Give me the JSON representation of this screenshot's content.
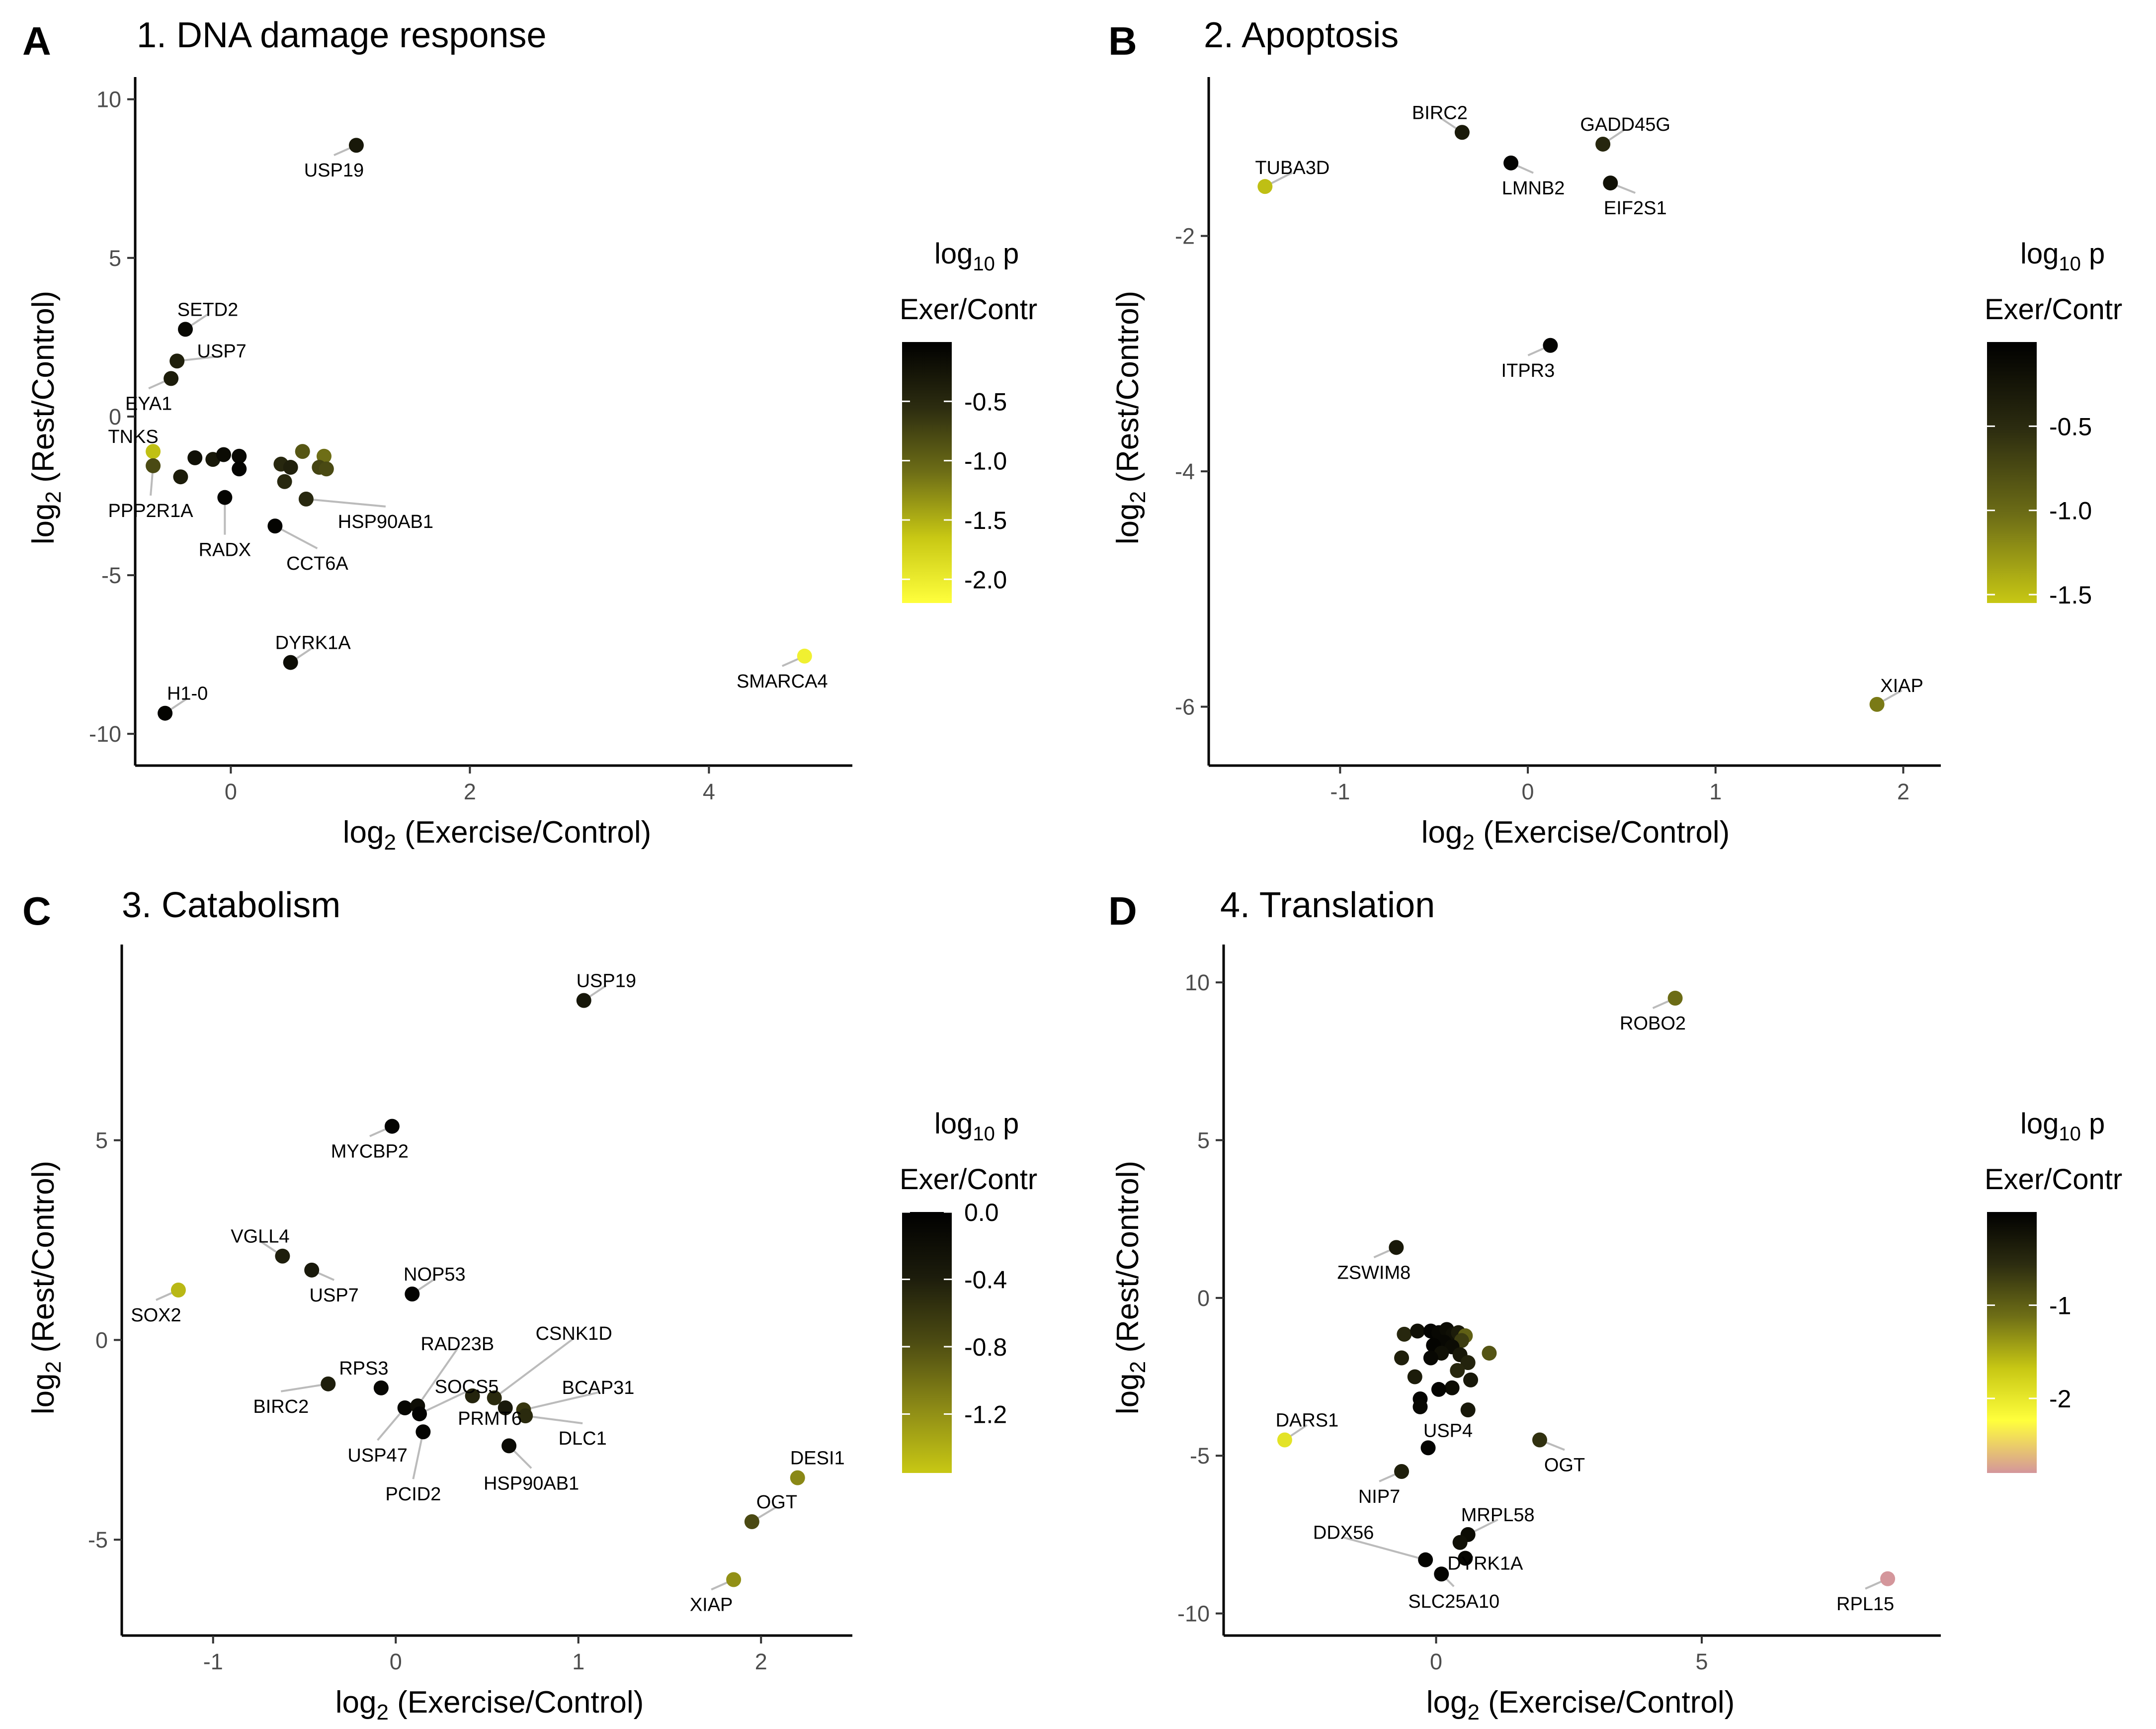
{
  "figure": {
    "panels": [
      {
        "letter": "A",
        "title": "1. DNA damage response",
        "legend": {
          "title_line1": "log10 p",
          "title_line2": "Exer/Contr"
        },
        "axis_titles": {
          "x": "log2 (Exercise/Control)",
          "y": "log2 (Rest/Control)"
        }
      },
      {
        "letter": "B",
        "title": "2. Apoptosis",
        "legend": {
          "title_line1": "log10 p",
          "title_line2": "Exer/Contr"
        },
        "axis_titles": {
          "x": "log2 (Exercise/Control)",
          "y": "log2 (Rest/Control)"
        }
      },
      {
        "letter": "C",
        "title": "3. Catabolism",
        "legend": {
          "title_line1": "log10 p",
          "title_line2": "Exer/Contr"
        },
        "axis_titles": {
          "x": "log2 (Exercise/Control)",
          "y": "log2 (Rest/Control)"
        }
      },
      {
        "letter": "D",
        "title": "4. Translation",
        "legend": {
          "title_line1": "log10 p",
          "title_line2": "Exer/Contr"
        },
        "axis_titles": {
          "x": "log2 (Exercise/Control)",
          "y": "log2 (Rest/Control)"
        }
      }
    ]
  },
  "chart_data": [
    {
      "type": "scatter",
      "title": "1. DNA damage response",
      "xlabel": "log2 (Exercise/Control)",
      "ylabel": "log2 (Rest/Control)",
      "xlim": [
        -0.8,
        5.2
      ],
      "ylim": [
        -11,
        10.7
      ],
      "xticks": [
        0,
        2,
        4
      ],
      "yticks": [
        -10,
        -5,
        0,
        5,
        10
      ],
      "color_scale": {
        "min": -2.2,
        "max": 0,
        "ticks": [
          -0.5,
          -1.0,
          -1.5,
          -2.0
        ],
        "tick_labels": [
          "-0.5",
          "-1.0",
          "-1.5",
          "-2.0"
        ],
        "colors": [
          "#ffff3c",
          "#c8c814",
          "#6e6e16",
          "#2c2c10",
          "#000000"
        ]
      },
      "points": [
        {
          "x": 1.05,
          "y": 8.55,
          "p": -0.3,
          "label": "USP19"
        },
        {
          "x": -0.38,
          "y": 2.75,
          "p": -0.1,
          "label": "SETD2"
        },
        {
          "x": -0.45,
          "y": 1.75,
          "p": -0.4,
          "label": "USP7"
        },
        {
          "x": -0.5,
          "y": 1.2,
          "p": -0.35,
          "label": "EYA1"
        },
        {
          "x": -0.65,
          "y": -1.1,
          "p": -1.6,
          "label": "TNKS"
        },
        {
          "x": -0.65,
          "y": -1.55,
          "p": -0.8,
          "label": "PPP2R1A"
        },
        {
          "x": -0.42,
          "y": -1.9,
          "p": -0.35
        },
        {
          "x": -0.3,
          "y": -1.3,
          "p": -0.2
        },
        {
          "x": -0.15,
          "y": -1.35,
          "p": -0.3
        },
        {
          "x": -0.06,
          "y": -1.2,
          "p": -0.15
        },
        {
          "x": 0.07,
          "y": -1.25,
          "p": -0.1
        },
        {
          "x": 0.07,
          "y": -1.65,
          "p": -0.05
        },
        {
          "x": -0.05,
          "y": -2.55,
          "p": -0.05,
          "label": "RADX"
        },
        {
          "x": 0.37,
          "y": -3.45,
          "p": -0.05,
          "label": "CCT6A"
        },
        {
          "x": 0.42,
          "y": -1.5,
          "p": -0.5
        },
        {
          "x": 0.5,
          "y": -1.6,
          "p": -0.4
        },
        {
          "x": 0.45,
          "y": -2.05,
          "p": -0.5
        },
        {
          "x": 0.6,
          "y": -1.1,
          "p": -0.9
        },
        {
          "x": 0.63,
          "y": -2.6,
          "p": -0.5,
          "label": "HSP90AB1"
        },
        {
          "x": 0.78,
          "y": -1.25,
          "p": -1.1
        },
        {
          "x": 0.74,
          "y": -1.6,
          "p": -0.75
        },
        {
          "x": 0.8,
          "y": -1.65,
          "p": -0.8
        },
        {
          "x": 0.5,
          "y": -7.75,
          "p": -0.15,
          "label": "DYRK1A"
        },
        {
          "x": -0.55,
          "y": -9.35,
          "p": -0.05,
          "label": "H1-0"
        },
        {
          "x": 4.8,
          "y": -7.55,
          "p": -2.05,
          "label": "SMARCA4"
        }
      ]
    },
    {
      "type": "scatter",
      "title": "2. Apoptosis",
      "xlabel": "log2 (Exercise/Control)",
      "ylabel": "log2 (Rest/Control)",
      "xlim": [
        -1.7,
        2.2
      ],
      "ylim": [
        -6.5,
        -0.65
      ],
      "xticks": [
        -1,
        0,
        1,
        2
      ],
      "yticks": [
        -2,
        -4,
        -6
      ],
      "color_scale": {
        "min": -1.55,
        "max": 0,
        "ticks": [
          -0.5,
          -1.0,
          -1.5
        ],
        "tick_labels": [
          "-0.5",
          "-1.0",
          "-1.5"
        ],
        "colors": [
          "#c8c814",
          "#6e6e16",
          "#2c2c10",
          "#000000"
        ]
      },
      "points": [
        {
          "x": -1.4,
          "y": -1.58,
          "p": -1.5,
          "label": "TUBA3D"
        },
        {
          "x": -0.35,
          "y": -1.12,
          "p": -0.3,
          "label": "BIRC2"
        },
        {
          "x": -0.09,
          "y": -1.38,
          "p": -0.05,
          "label": "LMNB2"
        },
        {
          "x": 0.4,
          "y": -1.22,
          "p": -0.45,
          "label": "GADD45G"
        },
        {
          "x": 0.44,
          "y": -1.55,
          "p": -0.2,
          "label": "EIF2S1"
        },
        {
          "x": 0.12,
          "y": -2.93,
          "p": -0.05,
          "label": "ITPR3"
        },
        {
          "x": 1.86,
          "y": -5.98,
          "p": -1.1,
          "label": "XIAP"
        }
      ]
    },
    {
      "type": "scatter",
      "title": "3. Catabolism",
      "xlabel": "log2 (Exercise/Control)",
      "ylabel": "log2 (Rest/Control)",
      "xlim": [
        -1.5,
        2.5
      ],
      "ylim": [
        -7.4,
        9.9
      ],
      "xticks": [
        -1,
        0,
        1,
        2
      ],
      "yticks": [
        -5,
        0,
        5
      ],
      "color_scale": {
        "min": -1.55,
        "max": 0,
        "ticks": [
          0.0,
          -0.4,
          -0.8,
          -1.2
        ],
        "tick_labels": [
          "0.0",
          "-0.4",
          "-0.8",
          "-1.2"
        ],
        "colors": [
          "#c8c814",
          "#8c8a16",
          "#4d4c12",
          "#1c1c0c",
          "#000000"
        ]
      },
      "points": [
        {
          "x": 1.03,
          "y": 8.5,
          "p": -0.3,
          "label": "USP19"
        },
        {
          "x": -0.02,
          "y": 5.35,
          "p": -0.05,
          "label": "MYCBP2"
        },
        {
          "x": -0.62,
          "y": 2.1,
          "p": -0.4,
          "label": "VGLL4"
        },
        {
          "x": -0.46,
          "y": 1.75,
          "p": -0.35,
          "label": "USP7"
        },
        {
          "x": -1.19,
          "y": 1.25,
          "p": -1.45,
          "label": "SOX2"
        },
        {
          "x": 0.09,
          "y": 1.15,
          "p": -0.05,
          "label": "NOP53"
        },
        {
          "x": -0.37,
          "y": -1.1,
          "p": -0.4,
          "label": "BIRC2"
        },
        {
          "x": -0.08,
          "y": -1.2,
          "p": -0.1,
          "label": "RPS3"
        },
        {
          "x": 0.05,
          "y": -1.7,
          "p": -0.1,
          "label": "USP47"
        },
        {
          "x": 0.12,
          "y": -1.65,
          "p": -0.2,
          "label": "RAD23B"
        },
        {
          "x": 0.13,
          "y": -1.85,
          "p": -0.05,
          "label": "SOCS5"
        },
        {
          "x": 0.15,
          "y": -2.3,
          "p": -0.05,
          "label": "PCID2"
        },
        {
          "x": 0.42,
          "y": -1.4,
          "p": -0.45,
          "label": "PRMT6"
        },
        {
          "x": 0.54,
          "y": -1.45,
          "p": -0.5,
          "label": "CSNK1D"
        },
        {
          "x": 0.6,
          "y": -1.7,
          "p": -0.35
        },
        {
          "x": 0.7,
          "y": -1.75,
          "p": -0.6,
          "label": "BCAP31"
        },
        {
          "x": 0.71,
          "y": -1.9,
          "p": -0.5,
          "label": "DLC1"
        },
        {
          "x": 0.62,
          "y": -2.65,
          "p": -0.15,
          "label": "HSP90AB1"
        },
        {
          "x": 2.2,
          "y": -3.45,
          "p": -1.15,
          "label": "DESI1"
        },
        {
          "x": 1.95,
          "y": -4.55,
          "p": -0.75,
          "label": "OGT"
        },
        {
          "x": 1.85,
          "y": -6.0,
          "p": -1.2,
          "label": "XIAP"
        }
      ]
    },
    {
      "type": "scatter",
      "title": "4. Translation",
      "xlabel": "log2 (Exercise/Control)",
      "ylabel": "log2 (Rest/Control)",
      "xlim": [
        -4,
        9.5
      ],
      "ylim": [
        -10.7,
        11.2
      ],
      "xticks": [
        0,
        5
      ],
      "yticks": [
        -10,
        -5,
        0,
        5,
        10
      ],
      "color_scale": {
        "min": -2.8,
        "max": 0,
        "ticks": [
          -1,
          -2
        ],
        "tick_labels": [
          "-1",
          "-2"
        ],
        "colors": [
          "#d4969b",
          "#ffff3c",
          "#c8c814",
          "#6e6e16",
          "#2c2c10",
          "#000000"
        ]
      },
      "points": [
        {
          "x": 4.5,
          "y": 9.5,
          "p": -1.1,
          "label": "ROBO2"
        },
        {
          "x": -0.75,
          "y": 1.6,
          "p": -0.3,
          "label": "ZSWIM8"
        },
        {
          "x": -0.6,
          "y": -1.15,
          "p": -0.5
        },
        {
          "x": -0.35,
          "y": -1.05,
          "p": -0.2
        },
        {
          "x": -0.1,
          "y": -1.05,
          "p": -0.05
        },
        {
          "x": 0.05,
          "y": -1.1,
          "p": -0.1
        },
        {
          "x": 0.2,
          "y": -1.0,
          "p": -0.15
        },
        {
          "x": 0.32,
          "y": -1.15,
          "p": -0.2
        },
        {
          "x": 0.42,
          "y": -1.1,
          "p": -0.35
        },
        {
          "x": 0.55,
          "y": -1.2,
          "p": -1.0
        },
        {
          "x": 0.48,
          "y": -1.35,
          "p": -0.7
        },
        {
          "x": 0.15,
          "y": -1.4,
          "p": -0.1
        },
        {
          "x": -0.05,
          "y": -1.5,
          "p": -0.05
        },
        {
          "x": 0.3,
          "y": -1.55,
          "p": -0.15
        },
        {
          "x": 0.1,
          "y": -1.75,
          "p": -0.2
        },
        {
          "x": -0.1,
          "y": -1.9,
          "p": -0.1
        },
        {
          "x": 0.45,
          "y": -1.8,
          "p": -0.3
        },
        {
          "x": 0.6,
          "y": -2.05,
          "p": -0.45
        },
        {
          "x": 1.0,
          "y": -1.75,
          "p": -0.9
        },
        {
          "x": -0.65,
          "y": -1.9,
          "p": -0.4
        },
        {
          "x": 0.4,
          "y": -2.3,
          "p": -0.5
        },
        {
          "x": 0.65,
          "y": -2.6,
          "p": -0.3
        },
        {
          "x": -0.4,
          "y": -2.5,
          "p": -0.35
        },
        {
          "x": 0.3,
          "y": -2.85,
          "p": -0.15
        },
        {
          "x": 0.05,
          "y": -2.9,
          "p": -0.05
        },
        {
          "x": -0.3,
          "y": -3.2,
          "p": -0.05
        },
        {
          "x": -0.3,
          "y": -3.45,
          "p": -0.1
        },
        {
          "x": 0.6,
          "y": -3.55,
          "p": -0.3
        },
        {
          "x": -0.15,
          "y": -4.75,
          "p": -0.05,
          "label": "USP4"
        },
        {
          "x": 1.95,
          "y": -4.5,
          "p": -0.6,
          "label": "OGT"
        },
        {
          "x": -2.85,
          "y": -4.5,
          "p": -1.95,
          "label": "DARS1"
        },
        {
          "x": -0.65,
          "y": -5.5,
          "p": -0.4,
          "label": "NIP7"
        },
        {
          "x": 0.6,
          "y": -7.5,
          "p": -0.15,
          "label": "MRPL58"
        },
        {
          "x": 0.45,
          "y": -7.75,
          "p": -0.2
        },
        {
          "x": -0.2,
          "y": -8.3,
          "p": -0.05,
          "label": "DDX56"
        },
        {
          "x": 0.55,
          "y": -8.25,
          "p": -0.1,
          "label": "DYRK1A"
        },
        {
          "x": 0.1,
          "y": -8.75,
          "p": -0.05,
          "label": "SLC25A10"
        },
        {
          "x": 8.5,
          "y": -8.9,
          "p": -2.8,
          "label": "RPL15"
        }
      ]
    }
  ]
}
